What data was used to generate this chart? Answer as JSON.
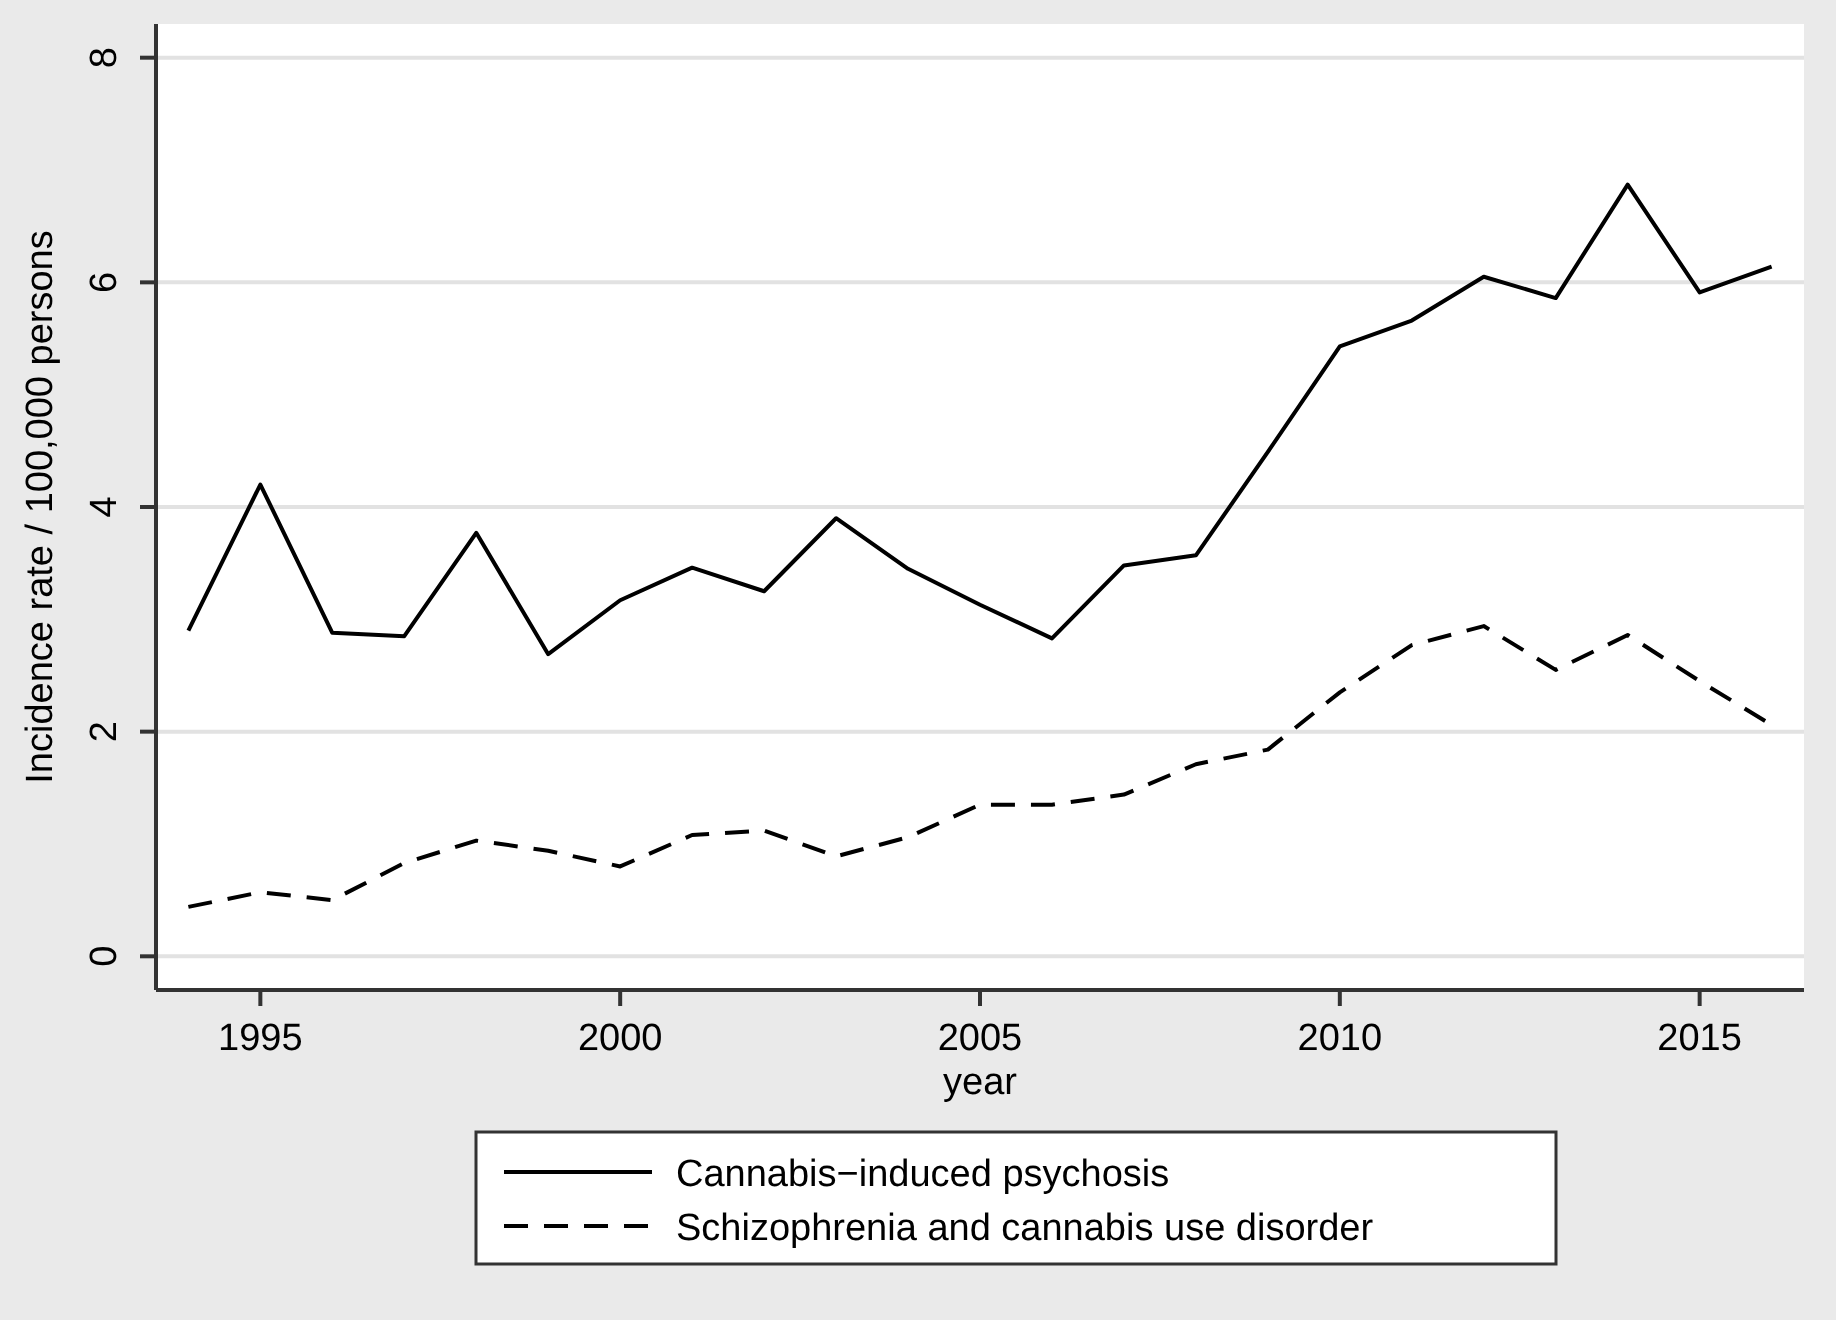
{
  "chart_data": {
    "type": "line",
    "xlabel": "year",
    "ylabel": "Incidence rate / 100,000 persons",
    "x": [
      1994,
      1995,
      1996,
      1997,
      1998,
      1999,
      2000,
      2001,
      2002,
      2003,
      2004,
      2005,
      2006,
      2007,
      2008,
      2009,
      2010,
      2011,
      2012,
      2013,
      2014,
      2015,
      2016
    ],
    "series": [
      {
        "name": "Cannabis−induced psychosis",
        "color": "#000000",
        "line_style": "solid",
        "values": [
          2.9,
          4.2,
          2.88,
          2.85,
          3.77,
          2.69,
          3.17,
          3.46,
          3.25,
          3.9,
          3.45,
          3.13,
          2.83,
          3.48,
          3.57,
          4.49,
          5.43,
          5.66,
          6.05,
          5.86,
          6.87,
          5.91,
          6.14
        ]
      },
      {
        "name": "Schizophrenia and cannabis use disorder",
        "color": "#000000",
        "line_style": "dashed",
        "values": [
          0.44,
          0.57,
          0.5,
          0.83,
          1.03,
          0.94,
          0.8,
          1.08,
          1.12,
          0.89,
          1.06,
          1.35,
          1.35,
          1.44,
          1.71,
          1.84,
          2.35,
          2.77,
          2.94,
          2.55,
          2.86,
          2.45,
          2.06
        ]
      }
    ],
    "xlim": [
      1993.55,
      2016.45
    ],
    "xticks": [
      1995,
      2000,
      2005,
      2010,
      2015
    ],
    "ylim": [
      -0.3,
      8.3
    ],
    "yticks": [
      0,
      2,
      4,
      6,
      8
    ],
    "grid": "y",
    "legend": "bottom",
    "marker": "none"
  }
}
